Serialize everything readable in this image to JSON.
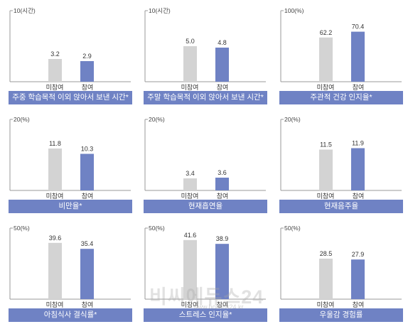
{
  "colors": {
    "non_participant": "#d3d3d3",
    "participant": "#6f82c4",
    "caption_bg": "#6f82c4",
    "axis": "#999999"
  },
  "watermark": {
    "text": "비씨에듀스24",
    "url": "www.bcedus24.kr"
  },
  "chart_data": [
    {
      "type": "bar",
      "ylim": [
        0,
        10
      ],
      "ylabel": "10(시간)",
      "categories": [
        "미참여",
        "참여"
      ],
      "values": [
        3.2,
        2.9
      ],
      "value_labels": [
        "3.2",
        "2.9"
      ],
      "title": "주중 학습목적 이외 앉아서 보낸 시간*"
    },
    {
      "type": "bar",
      "ylim": [
        0,
        10
      ],
      "ylabel": "10(시간)",
      "categories": [
        "미참여",
        "참여"
      ],
      "values": [
        5.0,
        4.8
      ],
      "value_labels": [
        "5.0",
        "4.8"
      ],
      "title": "주말 학습목적 이외 앉아서 보낸 시간*"
    },
    {
      "type": "bar",
      "ylim": [
        0,
        100
      ],
      "ylabel": "100(%)",
      "categories": [
        "미참여",
        "참여"
      ],
      "values": [
        62.2,
        70.4
      ],
      "value_labels": [
        "62.2",
        "70.4"
      ],
      "title": "주관적 건강 인지율*"
    },
    {
      "type": "bar",
      "ylim": [
        0,
        20
      ],
      "ylabel": "20(%)",
      "categories": [
        "미참여",
        "참여"
      ],
      "values": [
        11.8,
        10.3
      ],
      "value_labels": [
        "11.8",
        "10.3"
      ],
      "title": "비만율*"
    },
    {
      "type": "bar",
      "ylim": [
        0,
        20
      ],
      "ylabel": "20(%)",
      "categories": [
        "미참여",
        "참여"
      ],
      "values": [
        3.4,
        3.6
      ],
      "value_labels": [
        "3.4",
        "3.6"
      ],
      "title": "현재흡연율"
    },
    {
      "type": "bar",
      "ylim": [
        0,
        20
      ],
      "ylabel": "20(%)",
      "categories": [
        "미참여",
        "참여"
      ],
      "values": [
        11.5,
        11.9
      ],
      "value_labels": [
        "11.5",
        "11.9"
      ],
      "title": "현재음주율"
    },
    {
      "type": "bar",
      "ylim": [
        0,
        50
      ],
      "ylabel": "50(%)",
      "categories": [
        "미참여",
        "참여"
      ],
      "values": [
        39.6,
        35.4
      ],
      "value_labels": [
        "39.6",
        "35.4"
      ],
      "title": "아침식사 결식률*"
    },
    {
      "type": "bar",
      "ylim": [
        0,
        50
      ],
      "ylabel": "50(%)",
      "categories": [
        "미참여",
        "참여"
      ],
      "values": [
        41.6,
        38.9
      ],
      "value_labels": [
        "41.6",
        "38.9"
      ],
      "title": "스트레스 인지율*"
    },
    {
      "type": "bar",
      "ylim": [
        0,
        50
      ],
      "ylabel": "50(%)",
      "categories": [
        "미참여",
        "참여"
      ],
      "values": [
        28.5,
        27.9
      ],
      "value_labels": [
        "28.5",
        "27.9"
      ],
      "title": "우울감 경험률"
    }
  ]
}
